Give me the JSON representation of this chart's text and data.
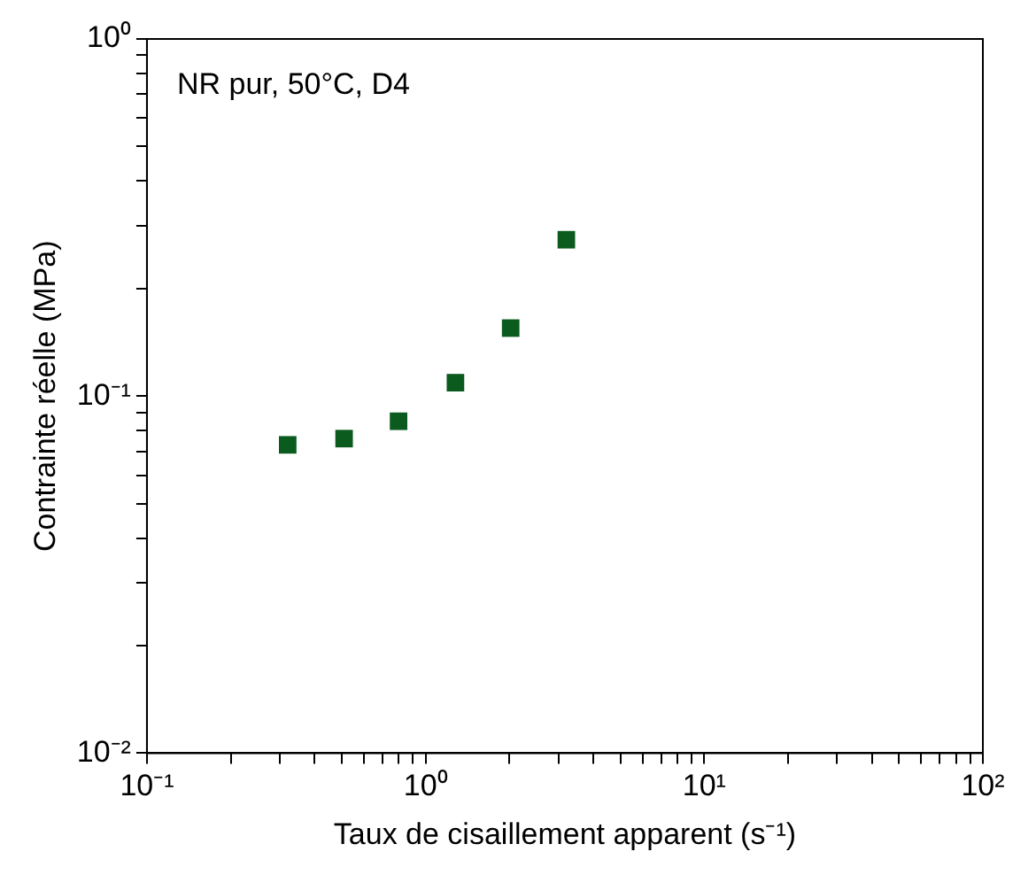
{
  "chart_data": {
    "type": "scatter",
    "xlabel": "Taux de cisaillement apparent (s⁻¹)",
    "ylabel": "Contrainte réelle (MPa)",
    "log": "xy",
    "marker": "square",
    "annotations": [
      "NR pur, 50°C, D4"
    ],
    "x": [
      0.32,
      0.51,
      0.8,
      1.28,
      2.02,
      3.2
    ],
    "series": [
      {
        "color": "#0b5a1e",
        "values": [
          0.073,
          0.076,
          0.085,
          0.109,
          0.155,
          0.274
        ]
      }
    ],
    "xlim": [
      0.1,
      100
    ],
    "ylim": [
      0.01,
      1
    ],
    "xticks": [
      {
        "value": 0.1,
        "label": "10⁻¹"
      },
      {
        "value": 0.2,
        "label": null
      },
      {
        "value": 0.3,
        "label": null
      },
      {
        "value": 0.4,
        "label": null
      },
      {
        "value": 0.5,
        "label": null
      },
      {
        "value": 0.6,
        "label": null
      },
      {
        "value": 0.7,
        "label": null
      },
      {
        "value": 0.8,
        "label": null
      },
      {
        "value": 0.9,
        "label": null
      },
      {
        "value": 1,
        "label": "10⁰"
      },
      {
        "value": 2,
        "label": null
      },
      {
        "value": 3,
        "label": null
      },
      {
        "value": 4,
        "label": null
      },
      {
        "value": 5,
        "label": null
      },
      {
        "value": 6,
        "label": null
      },
      {
        "value": 7,
        "label": null
      },
      {
        "value": 8,
        "label": null
      },
      {
        "value": 9,
        "label": null
      },
      {
        "value": 10,
        "label": "10¹"
      },
      {
        "value": 20,
        "label": null
      },
      {
        "value": 30,
        "label": null
      },
      {
        "value": 40,
        "label": null
      },
      {
        "value": 50,
        "label": null
      },
      {
        "value": 60,
        "label": null
      },
      {
        "value": 70,
        "label": null
      },
      {
        "value": 80,
        "label": null
      },
      {
        "value": 90,
        "label": null
      },
      {
        "value": 100,
        "label": "10²"
      }
    ],
    "yticks": [
      {
        "value": 0.01,
        "label": "10⁻²"
      },
      {
        "value": 0.02,
        "label": null
      },
      {
        "value": 0.03,
        "label": null
      },
      {
        "value": 0.04,
        "label": null
      },
      {
        "value": 0.05,
        "label": null
      },
      {
        "value": 0.06,
        "label": null
      },
      {
        "value": 0.07,
        "label": null
      },
      {
        "value": 0.08,
        "label": null
      },
      {
        "value": 0.09,
        "label": null
      },
      {
        "value": 0.1,
        "label": "10⁻¹"
      },
      {
        "value": 0.2,
        "label": null
      },
      {
        "value": 0.3,
        "label": null
      },
      {
        "value": 0.4,
        "label": null
      },
      {
        "value": 0.5,
        "label": null
      },
      {
        "value": 0.6,
        "label": null
      },
      {
        "value": 0.7,
        "label": null
      },
      {
        "value": 0.8,
        "label": null
      },
      {
        "value": 0.9,
        "label": null
      },
      {
        "value": 1,
        "label": "10⁰"
      }
    ],
    "grid": false,
    "legend": false
  }
}
